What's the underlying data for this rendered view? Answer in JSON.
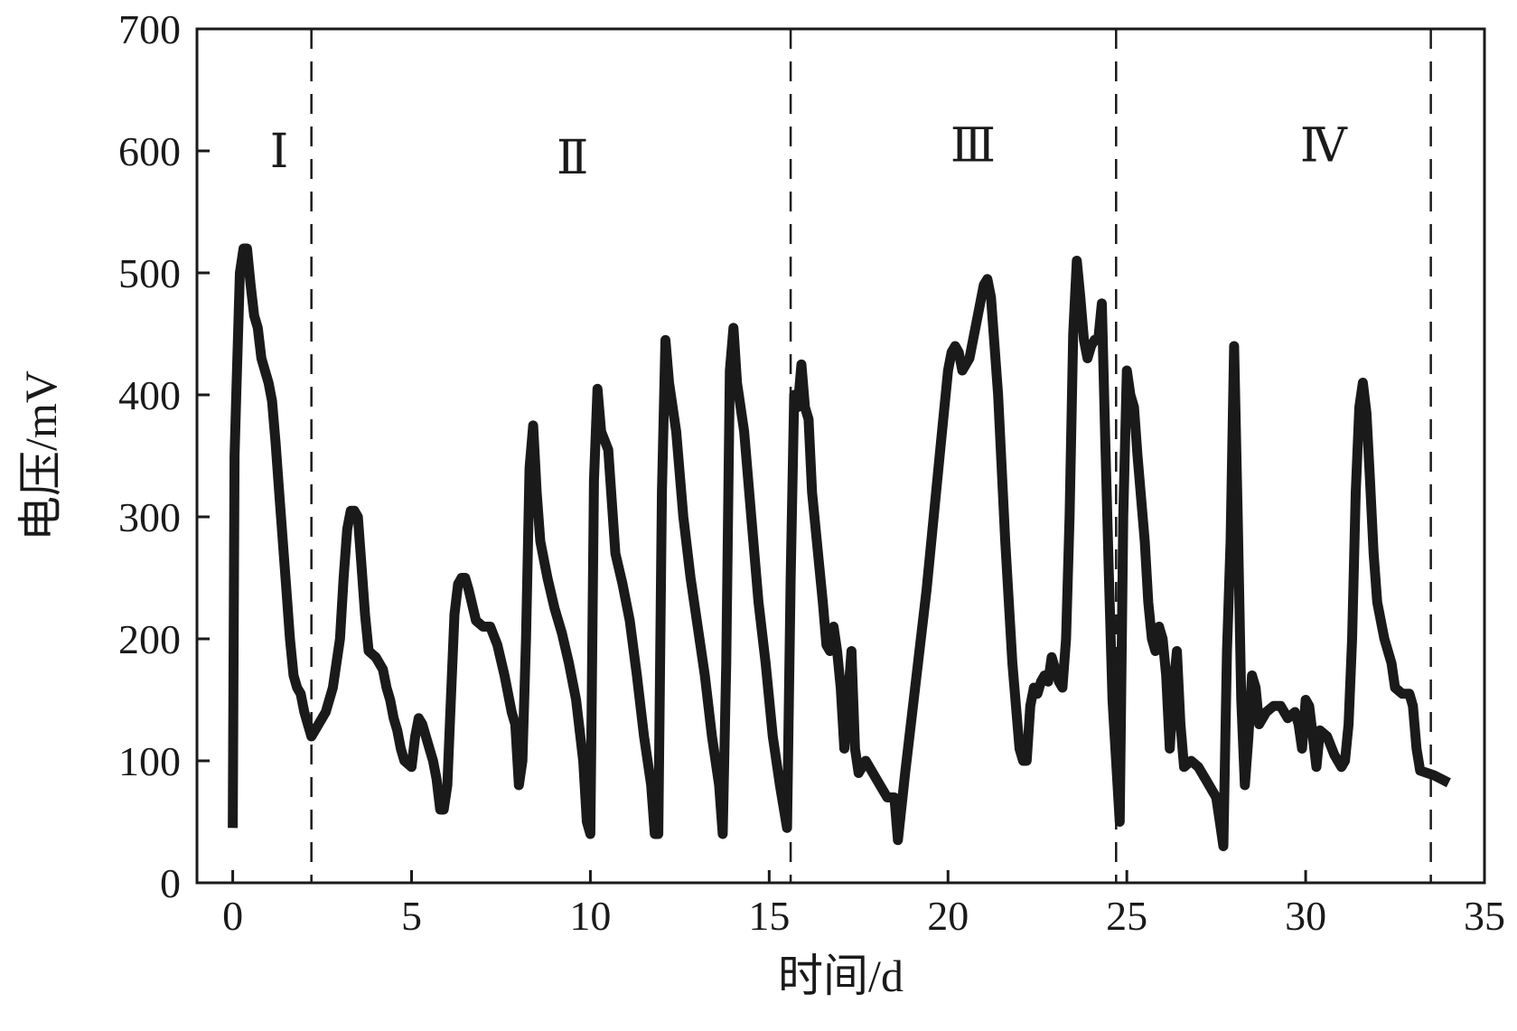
{
  "chart_data": {
    "type": "line",
    "xlabel": "时间/d",
    "ylabel": "电压/mV",
    "xlim": [
      -1,
      35
    ],
    "ylim": [
      0,
      700
    ],
    "xticks": [
      0,
      5,
      10,
      15,
      20,
      25,
      30,
      35
    ],
    "yticks": [
      0,
      100,
      200,
      300,
      400,
      500,
      600,
      700
    ],
    "phase_boundaries": [
      2.2,
      15.6,
      24.7,
      33.5
    ],
    "phases": [
      {
        "label": "Ⅰ",
        "x": 1.3,
        "y": 600
      },
      {
        "label": "Ⅱ",
        "x": 9.5,
        "y": 595
      },
      {
        "label": "Ⅲ",
        "x": 20.7,
        "y": 605
      },
      {
        "label": "Ⅳ",
        "x": 30.5,
        "y": 605
      }
    ],
    "grid": false,
    "series": [
      {
        "color": "#1a1a1a",
        "points": [
          [
            0,
            45
          ],
          [
            0.05,
            350
          ],
          [
            0.1,
            400
          ],
          [
            0.2,
            500
          ],
          [
            0.3,
            520
          ],
          [
            0.4,
            520
          ],
          [
            0.5,
            490
          ],
          [
            0.6,
            465
          ],
          [
            0.7,
            455
          ],
          [
            0.8,
            430
          ],
          [
            0.9,
            420
          ],
          [
            1.0,
            410
          ],
          [
            1.1,
            395
          ],
          [
            1.2,
            360
          ],
          [
            1.3,
            320
          ],
          [
            1.4,
            280
          ],
          [
            1.5,
            240
          ],
          [
            1.6,
            200
          ],
          [
            1.7,
            170
          ],
          [
            1.8,
            160
          ],
          [
            1.9,
            155
          ],
          [
            2.0,
            140
          ],
          [
            2.1,
            130
          ],
          [
            2.2,
            120
          ],
          [
            2.4,
            130
          ],
          [
            2.6,
            140
          ],
          [
            2.8,
            160
          ],
          [
            3.0,
            200
          ],
          [
            3.1,
            250
          ],
          [
            3.2,
            290
          ],
          [
            3.3,
            305
          ],
          [
            3.4,
            305
          ],
          [
            3.5,
            300
          ],
          [
            3.6,
            260
          ],
          [
            3.7,
            220
          ],
          [
            3.8,
            190
          ],
          [
            4.0,
            185
          ],
          [
            4.2,
            175
          ],
          [
            4.3,
            160
          ],
          [
            4.4,
            150
          ],
          [
            4.5,
            135
          ],
          [
            4.6,
            125
          ],
          [
            4.7,
            110
          ],
          [
            4.8,
            100
          ],
          [
            5.0,
            95
          ],
          [
            5.1,
            120
          ],
          [
            5.2,
            135
          ],
          [
            5.3,
            130
          ],
          [
            5.5,
            110
          ],
          [
            5.6,
            100
          ],
          [
            5.7,
            85
          ],
          [
            5.8,
            60
          ],
          [
            5.9,
            60
          ],
          [
            6.0,
            80
          ],
          [
            6.1,
            150
          ],
          [
            6.2,
            220
          ],
          [
            6.3,
            245
          ],
          [
            6.4,
            250
          ],
          [
            6.5,
            250
          ],
          [
            6.6,
            240
          ],
          [
            6.8,
            215
          ],
          [
            7.0,
            210
          ],
          [
            7.2,
            210
          ],
          [
            7.4,
            195
          ],
          [
            7.6,
            170
          ],
          [
            7.8,
            140
          ],
          [
            7.9,
            130
          ],
          [
            8.0,
            80
          ],
          [
            8.1,
            100
          ],
          [
            8.2,
            200
          ],
          [
            8.3,
            340
          ],
          [
            8.4,
            375
          ],
          [
            8.5,
            320
          ],
          [
            8.6,
            280
          ],
          [
            8.8,
            250
          ],
          [
            9.0,
            225
          ],
          [
            9.2,
            205
          ],
          [
            9.4,
            180
          ],
          [
            9.6,
            150
          ],
          [
            9.8,
            100
          ],
          [
            9.9,
            50
          ],
          [
            10.0,
            40
          ],
          [
            10.1,
            330
          ],
          [
            10.2,
            405
          ],
          [
            10.3,
            370
          ],
          [
            10.5,
            355
          ],
          [
            10.7,
            270
          ],
          [
            10.9,
            245
          ],
          [
            11.1,
            215
          ],
          [
            11.3,
            170
          ],
          [
            11.5,
            120
          ],
          [
            11.7,
            80
          ],
          [
            11.8,
            40
          ],
          [
            11.9,
            40
          ],
          [
            12.0,
            320
          ],
          [
            12.1,
            445
          ],
          [
            12.2,
            410
          ],
          [
            12.4,
            370
          ],
          [
            12.6,
            300
          ],
          [
            12.8,
            250
          ],
          [
            13.0,
            210
          ],
          [
            13.2,
            170
          ],
          [
            13.4,
            120
          ],
          [
            13.6,
            80
          ],
          [
            13.7,
            40
          ],
          [
            13.8,
            180
          ],
          [
            13.9,
            420
          ],
          [
            14.0,
            455
          ],
          [
            14.1,
            410
          ],
          [
            14.3,
            370
          ],
          [
            14.5,
            300
          ],
          [
            14.7,
            230
          ],
          [
            14.9,
            180
          ],
          [
            15.1,
            120
          ],
          [
            15.3,
            80
          ],
          [
            15.5,
            45
          ],
          [
            15.6,
            250
          ],
          [
            15.7,
            400
          ],
          [
            15.8,
            390
          ],
          [
            15.9,
            425
          ],
          [
            16.0,
            390
          ],
          [
            16.1,
            380
          ],
          [
            16.2,
            320
          ],
          [
            16.4,
            260
          ],
          [
            16.5,
            230
          ],
          [
            16.6,
            195
          ],
          [
            16.7,
            190
          ],
          [
            16.8,
            210
          ],
          [
            16.9,
            190
          ],
          [
            17.0,
            160
          ],
          [
            17.1,
            110
          ],
          [
            17.2,
            150
          ],
          [
            17.3,
            190
          ],
          [
            17.4,
            110
          ],
          [
            17.5,
            90
          ],
          [
            17.7,
            100
          ],
          [
            17.9,
            90
          ],
          [
            18.1,
            80
          ],
          [
            18.3,
            70
          ],
          [
            18.5,
            70
          ],
          [
            18.6,
            35
          ],
          [
            18.8,
            90
          ],
          [
            19.0,
            140
          ],
          [
            19.2,
            190
          ],
          [
            19.4,
            240
          ],
          [
            19.6,
            300
          ],
          [
            19.8,
            360
          ],
          [
            20.0,
            420
          ],
          [
            20.1,
            435
          ],
          [
            20.2,
            440
          ],
          [
            20.3,
            435
          ],
          [
            20.4,
            420
          ],
          [
            20.6,
            430
          ],
          [
            20.8,
            460
          ],
          [
            21.0,
            490
          ],
          [
            21.1,
            495
          ],
          [
            21.2,
            480
          ],
          [
            21.4,
            400
          ],
          [
            21.6,
            280
          ],
          [
            21.8,
            180
          ],
          [
            22.0,
            110
          ],
          [
            22.1,
            100
          ],
          [
            22.2,
            100
          ],
          [
            22.3,
            145
          ],
          [
            22.4,
            160
          ],
          [
            22.5,
            155
          ],
          [
            22.6,
            165
          ],
          [
            22.7,
            170
          ],
          [
            22.8,
            165
          ],
          [
            22.9,
            185
          ],
          [
            23.0,
            175
          ],
          [
            23.1,
            165
          ],
          [
            23.2,
            160
          ],
          [
            23.3,
            200
          ],
          [
            23.4,
            300
          ],
          [
            23.5,
            450
          ],
          [
            23.6,
            510
          ],
          [
            23.7,
            480
          ],
          [
            23.8,
            445
          ],
          [
            23.9,
            430
          ],
          [
            24.0,
            440
          ],
          [
            24.1,
            445
          ],
          [
            24.2,
            445
          ],
          [
            24.3,
            475
          ],
          [
            24.4,
            360
          ],
          [
            24.5,
            250
          ],
          [
            24.6,
            150
          ],
          [
            24.8,
            50
          ],
          [
            24.9,
            300
          ],
          [
            25.0,
            420
          ],
          [
            25.1,
            400
          ],
          [
            25.2,
            390
          ],
          [
            25.3,
            350
          ],
          [
            25.5,
            280
          ],
          [
            25.6,
            230
          ],
          [
            25.7,
            200
          ],
          [
            25.8,
            190
          ],
          [
            25.9,
            210
          ],
          [
            26.0,
            200
          ],
          [
            26.1,
            170
          ],
          [
            26.2,
            110
          ],
          [
            26.3,
            160
          ],
          [
            26.4,
            190
          ],
          [
            26.5,
            130
          ],
          [
            26.6,
            95
          ],
          [
            26.8,
            100
          ],
          [
            27.0,
            95
          ],
          [
            27.2,
            85
          ],
          [
            27.4,
            75
          ],
          [
            27.5,
            70
          ],
          [
            27.6,
            50
          ],
          [
            27.7,
            30
          ],
          [
            27.8,
            190
          ],
          [
            27.9,
            280
          ],
          [
            28.0,
            440
          ],
          [
            28.1,
            300
          ],
          [
            28.2,
            150
          ],
          [
            28.3,
            80
          ],
          [
            28.4,
            120
          ],
          [
            28.5,
            170
          ],
          [
            28.6,
            160
          ],
          [
            28.7,
            130
          ],
          [
            28.9,
            140
          ],
          [
            29.1,
            145
          ],
          [
            29.3,
            145
          ],
          [
            29.5,
            135
          ],
          [
            29.7,
            140
          ],
          [
            29.8,
            130
          ],
          [
            29.9,
            110
          ],
          [
            30.0,
            150
          ],
          [
            30.1,
            145
          ],
          [
            30.2,
            120
          ],
          [
            30.3,
            95
          ],
          [
            30.4,
            125
          ],
          [
            30.6,
            120
          ],
          [
            30.8,
            105
          ],
          [
            31.0,
            95
          ],
          [
            31.1,
            100
          ],
          [
            31.2,
            130
          ],
          [
            31.3,
            200
          ],
          [
            31.4,
            320
          ],
          [
            31.5,
            390
          ],
          [
            31.6,
            410
          ],
          [
            31.7,
            385
          ],
          [
            31.8,
            330
          ],
          [
            31.9,
            270
          ],
          [
            32.0,
            230
          ],
          [
            32.2,
            200
          ],
          [
            32.4,
            180
          ],
          [
            32.5,
            160
          ],
          [
            32.7,
            155
          ],
          [
            32.9,
            155
          ],
          [
            33.0,
            145
          ],
          [
            33.1,
            110
          ],
          [
            33.2,
            92
          ],
          [
            33.4,
            90
          ],
          [
            33.6,
            88
          ],
          [
            33.8,
            85
          ],
          [
            34.0,
            82
          ]
        ]
      }
    ]
  }
}
